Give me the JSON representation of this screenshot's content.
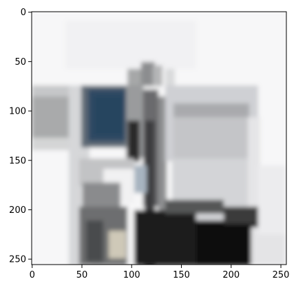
{
  "image": {
    "pixel_grid": [
      256,
      256
    ],
    "description_semantic": "blurry low-resolution photograph of an object with dark blue panel, black base, and light gray side panel"
  },
  "axes": {
    "x_ticks": [
      "0",
      "50",
      "100",
      "150",
      "200",
      "250"
    ],
    "y_ticks": [
      "0",
      "50",
      "100",
      "150",
      "200",
      "250"
    ],
    "x_values": [
      0,
      50,
      100,
      150,
      200,
      250
    ],
    "y_values": [
      0,
      50,
      100,
      150,
      200,
      250
    ],
    "xlim": [
      -0.5,
      255.5
    ],
    "ylim": [
      255.5,
      -0.5
    ]
  },
  "colors": {
    "background": "#ffffff",
    "spine": "#000000"
  }
}
